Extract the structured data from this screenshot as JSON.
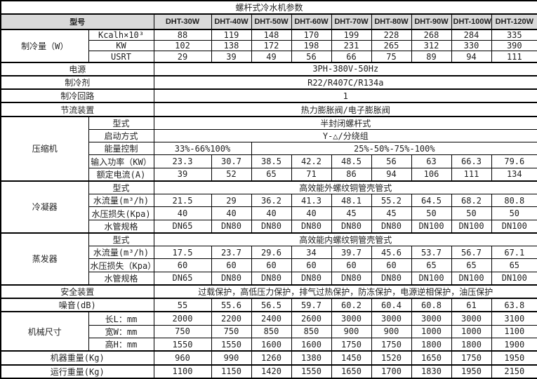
{
  "title": "螺杆式冷水机参数",
  "colors": {
    "header_bg": "#d9d9d9",
    "border": "#000000",
    "text": "#1f1f1f"
  },
  "header": {
    "model_label": "型号",
    "models": [
      "DHT-30W",
      "DHT-40W",
      "DHT-50W",
      "DHT-60W",
      "DHT-70W",
      "DHT-80W",
      "DHT-90W",
      "DHT-100W",
      "DHT-120W"
    ]
  },
  "labels": {
    "cooling": "制冷量（W）",
    "power": "电源",
    "refrigerant": "制冷剂",
    "circuit": "制冷回路",
    "throttle": "节流装置",
    "compressor": "压缩机",
    "condenser": "冷凝器",
    "evaporator": "蒸发器",
    "safety": "安全装置",
    "noise": "噪音(dB)",
    "dims": "机械尺寸",
    "machine_weight": "机器重量(Kg)",
    "running_weight": "运行重量(Kg)"
  },
  "rows": {
    "kcal": {
      "label": "Kcalh×10³",
      "values": [
        "88",
        "119",
        "148",
        "170",
        "199",
        "228",
        "268",
        "284",
        "335"
      ]
    },
    "kw": {
      "label": "KW",
      "values": [
        "102",
        "138",
        "172",
        "198",
        "231",
        "265",
        "312",
        "330",
        "390"
      ]
    },
    "usrt": {
      "label": "USRT",
      "values": [
        "29",
        "39",
        "49",
        "56",
        "66",
        "75",
        "89",
        "94",
        "111"
      ]
    },
    "power_value": "3PH-380V-50Hz",
    "refrigerant_value": "R22/R407C/R134a",
    "circuit_value": "1",
    "throttle_value": "热力膨胀阀/电子膨胀阀",
    "comp_type": {
      "label": "型式",
      "value": "半封闭螺杆式"
    },
    "comp_start": {
      "label": "启动方式",
      "value": "Y-△/分绕组"
    },
    "comp_energy": {
      "label": "能量控制",
      "value_a": "33%-66%100%",
      "value_b": "25%-50%-75%-100%"
    },
    "comp_input": {
      "label": "输入功率（KW）",
      "values": [
        "23.3",
        "30.7",
        "38.5",
        "42.2",
        "48.5",
        "56",
        "63",
        "66.3",
        "79.6"
      ]
    },
    "comp_current": {
      "label": "额定电流(A)",
      "values": [
        "39",
        "52",
        "65",
        "71",
        "86",
        "94",
        "106",
        "111",
        "134"
      ]
    },
    "cond_type": {
      "label": "型式",
      "value": "高效能外螺纹铜管壳管式"
    },
    "cond_flow": {
      "label": "水流量(m³/h)",
      "values": [
        "21.5",
        "29",
        "36.2",
        "41.3",
        "48.1",
        "55.2",
        "64.5",
        "68.2",
        "80.8"
      ]
    },
    "cond_drop": {
      "label": "水压损失(Kpa)",
      "values": [
        "40",
        "40",
        "40",
        "40",
        "45",
        "45",
        "50",
        "50",
        "50"
      ]
    },
    "cond_pipe": {
      "label": "水管规格",
      "values": [
        "DN65",
        "DN80",
        "DN80",
        "DN80",
        "DN80",
        "DN80",
        "DN100",
        "DN100",
        "DN100"
      ]
    },
    "evap_type": {
      "label": "型式",
      "value": "高效能内螺纹铜管壳管式"
    },
    "evap_flow": {
      "label": "水流量(m³/h)",
      "values": [
        "17.5",
        "23.7",
        "29.6",
        "34",
        "39.7",
        "45.6",
        "53.7",
        "56.7",
        "67.1"
      ]
    },
    "evap_drop": {
      "label": "水压损失（Kpa）",
      "values": [
        "60",
        "60",
        "60",
        "60",
        "60",
        "60",
        "65",
        "65",
        "65"
      ]
    },
    "evap_pipe": {
      "label": "水管规格",
      "values": [
        "DN65",
        "DN80",
        "DN80",
        "DN80",
        "DN80",
        "DN80",
        "DN100",
        "DN100",
        "DN100"
      ]
    },
    "safety_value": "过载保护，高低压力保护，排气过热保护，防冻保护，电源逆相保护，油压保护",
    "noise": {
      "values": [
        "55",
        "55.6",
        "56.5",
        "59.7",
        "60.2",
        "60.4",
        "60.8",
        "61",
        "63.8"
      ]
    },
    "dim_l": {
      "label": "长L：mm",
      "values": [
        "2000",
        "2200",
        "2400",
        "2600",
        "3000",
        "3000",
        "3000",
        "3000",
        "3100"
      ]
    },
    "dim_w": {
      "label": "宽W：mm",
      "values": [
        "750",
        "750",
        "850",
        "850",
        "900",
        "900",
        "1000",
        "1000",
        "1100"
      ]
    },
    "dim_h": {
      "label": "高H：mm",
      "values": [
        "1550",
        "1550",
        "1600",
        "1600",
        "1750",
        "1750",
        "1800",
        "1800",
        "1900"
      ]
    },
    "machine_weight": {
      "values": [
        "960",
        "990",
        "1260",
        "1380",
        "1450",
        "1520",
        "1650",
        "1750",
        "1950"
      ]
    },
    "running_weight": {
      "values": [
        "1100",
        "1150",
        "1420",
        "1550",
        "1650",
        "1700",
        "1830",
        "1950",
        "2150"
      ]
    }
  }
}
